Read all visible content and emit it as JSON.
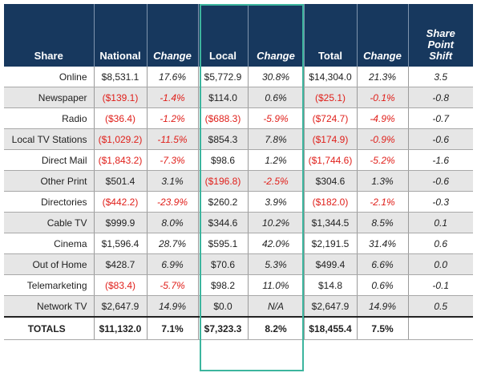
{
  "chart_data": {
    "type": "table",
    "columns": [
      "Share",
      "National",
      "Change",
      "Local",
      "Change",
      "Total",
      "Change",
      "Share Point Shift"
    ],
    "header_lines": {
      "share": "Share",
      "national": "National",
      "change1": "Change",
      "local": "Local",
      "change2": "Change",
      "total": "Total",
      "change3": "Change",
      "shift_l1": "Share",
      "shift_l2": "Point",
      "shift_l3": "Shift"
    },
    "rows": [
      [
        "Online",
        "$8,531.1",
        "17.6%",
        "$5,772.9",
        "30.8%",
        "$14,304.0",
        "21.3%",
        "3.5"
      ],
      [
        "Newspaper",
        "($139.1)",
        "-1.4%",
        "$114.0",
        "0.6%",
        "($25.1)",
        "-0.1%",
        "-0.8"
      ],
      [
        "Radio",
        "($36.4)",
        "-1.2%",
        "($688.3)",
        "-5.9%",
        "($724.7)",
        "-4.9%",
        "-0.7"
      ],
      [
        "Local TV Stations",
        "($1,029.2)",
        "-11.5%",
        "$854.3",
        "7.8%",
        "($174.9)",
        "-0.9%",
        "-0.6"
      ],
      [
        "Direct Mail",
        "($1,843.2)",
        "-7.3%",
        "$98.6",
        "1.2%",
        "($1,744.6)",
        "-5.2%",
        "-1.6"
      ],
      [
        "Other Print",
        "$501.4",
        "3.1%",
        "($196.8)",
        "-2.5%",
        "$304.6",
        "1.3%",
        "-0.6"
      ],
      [
        "Directories",
        "($442.2)",
        "-23.9%",
        "$260.2",
        "3.9%",
        "($182.0)",
        "-2.1%",
        "-0.3"
      ],
      [
        "Cable TV",
        "$999.9",
        "8.0%",
        "$344.6",
        "10.2%",
        "$1,344.5",
        "8.5%",
        "0.1"
      ],
      [
        "Cinema",
        "$1,596.4",
        "28.7%",
        "$595.1",
        "42.0%",
        "$2,191.5",
        "31.4%",
        "0.6"
      ],
      [
        "Out of Home",
        "$428.7",
        "6.9%",
        "$70.6",
        "5.3%",
        "$499.4",
        "6.6%",
        "0.0"
      ],
      [
        "Telemarketing",
        "($83.4)",
        "-5.7%",
        "$98.2",
        "11.0%",
        "$14.8",
        "0.6%",
        "-0.1"
      ],
      [
        "Network TV",
        "$2,647.9",
        "14.9%",
        "$0.0",
        "N/A",
        "$2,647.9",
        "14.9%",
        "0.5"
      ]
    ],
    "totals": [
      "TOTALS",
      "$11,132.0",
      "7.1%",
      "$7,323.3",
      "8.2%",
      "$18,455.4",
      "7.5%",
      ""
    ],
    "colors": {
      "header_bg": "#17385e",
      "negative": "#e0201b",
      "highlight_border": "#3cb59e",
      "alt_row": "#e6e6e6"
    }
  }
}
